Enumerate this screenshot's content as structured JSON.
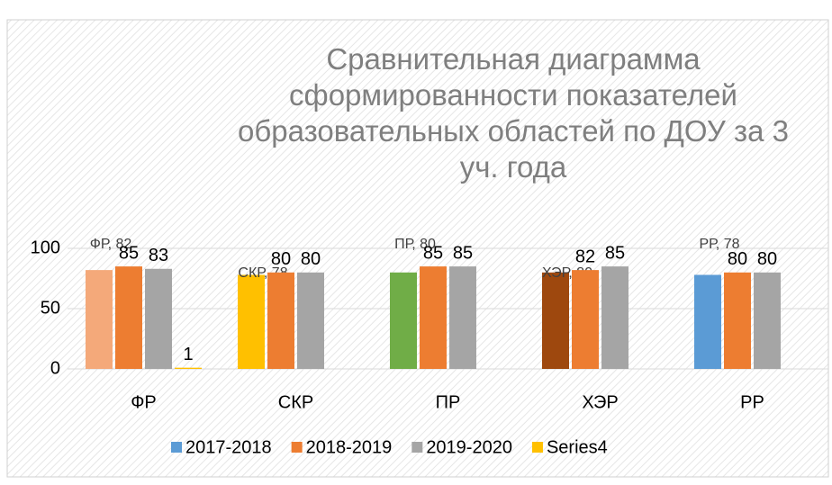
{
  "chart_data": {
    "type": "bar",
    "title": "Сравнительная диаграмма сформированности показателей образовательных областей по ДОУ за 3 уч. года",
    "categories": [
      "ФР",
      "СКР",
      "ПР",
      "ХЭР",
      "РР"
    ],
    "series": [
      {
        "name": "2017-2018",
        "color": "#5b9bd5",
        "point_colors": [
          "#f4a97a",
          "#ffc000",
          "#70ad47",
          "#9e480e",
          "#5b9bd5"
        ],
        "values": [
          82,
          78,
          80,
          80,
          78
        ],
        "value_labels": [
          "ФР, 82",
          "СКР, 78",
          "ПР, 80",
          "ХЭР, 80",
          "РР, 78"
        ]
      },
      {
        "name": "2018-2019",
        "color": "#ed7d31",
        "values": [
          85,
          80,
          85,
          82,
          80
        ]
      },
      {
        "name": "2019-2020",
        "color": "#a5a5a5",
        "values": [
          83,
          80,
          85,
          85,
          80
        ]
      },
      {
        "name": "Series4",
        "color": "#ffc000",
        "values": [
          1,
          null,
          null,
          null,
          null
        ]
      }
    ],
    "ylim": [
      0,
      100
    ],
    "yticks": [
      0,
      50,
      100
    ],
    "grid": true,
    "legend": "bottom"
  }
}
